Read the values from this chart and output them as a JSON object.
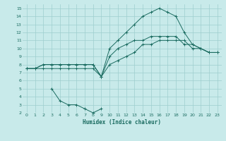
{
  "xlabel": "Humidex (Indice chaleur)",
  "bg_color": "#c8eaea",
  "grid_color": "#9ecece",
  "line_color": "#1a6b60",
  "xlim": [
    -0.5,
    23.5
  ],
  "ylim": [
    2,
    15.5
  ],
  "xticks": [
    0,
    1,
    2,
    3,
    4,
    5,
    6,
    7,
    8,
    9,
    10,
    11,
    12,
    13,
    14,
    15,
    16,
    17,
    18,
    19,
    20,
    21,
    22,
    23
  ],
  "yticks": [
    2,
    3,
    4,
    5,
    6,
    7,
    8,
    9,
    10,
    11,
    12,
    13,
    14,
    15
  ],
  "line1_x": [
    0,
    1,
    2,
    3,
    4,
    5,
    6,
    7,
    8,
    9,
    10,
    11,
    12,
    13,
    14,
    15,
    16,
    17,
    18,
    19,
    20,
    21,
    22,
    23
  ],
  "line1_y": [
    7.5,
    7.5,
    8.0,
    8.0,
    8.0,
    8.0,
    8.0,
    8.0,
    8.0,
    6.5,
    9.0,
    10.0,
    10.5,
    11.0,
    11.0,
    11.5,
    11.5,
    11.5,
    11.5,
    10.5,
    10.5,
    10.0,
    9.5,
    9.5
  ],
  "line2_x": [
    0,
    1,
    2,
    3,
    4,
    5,
    6,
    7,
    8,
    9,
    10,
    11,
    12,
    13,
    14,
    15,
    16,
    17,
    18,
    19,
    20,
    21,
    22,
    23
  ],
  "line2_y": [
    7.5,
    7.5,
    8.0,
    8.0,
    8.0,
    8.0,
    8.0,
    8.0,
    8.0,
    6.5,
    10.0,
    11.0,
    12.0,
    13.0,
    14.0,
    14.5,
    15.0,
    14.5,
    14.0,
    12.0,
    10.5,
    10.0,
    9.5,
    9.5
  ],
  "line3_x": [
    0,
    1,
    2,
    3,
    4,
    5,
    6,
    7,
    8,
    9,
    10,
    11,
    12,
    13,
    14,
    15,
    16,
    17,
    18,
    19,
    20,
    21,
    22,
    23
  ],
  "line3_y": [
    7.5,
    7.5,
    7.5,
    7.5,
    7.5,
    7.5,
    7.5,
    7.5,
    7.5,
    6.5,
    8.0,
    8.5,
    9.0,
    9.5,
    10.5,
    10.5,
    11.0,
    11.0,
    11.0,
    11.0,
    10.0,
    10.0,
    9.5,
    9.5
  ],
  "line4_x": [
    3,
    4,
    5,
    6,
    7,
    8,
    9
  ],
  "line4_y": [
    5.0,
    3.5,
    3.0,
    3.0,
    2.5,
    2.0,
    2.5
  ]
}
